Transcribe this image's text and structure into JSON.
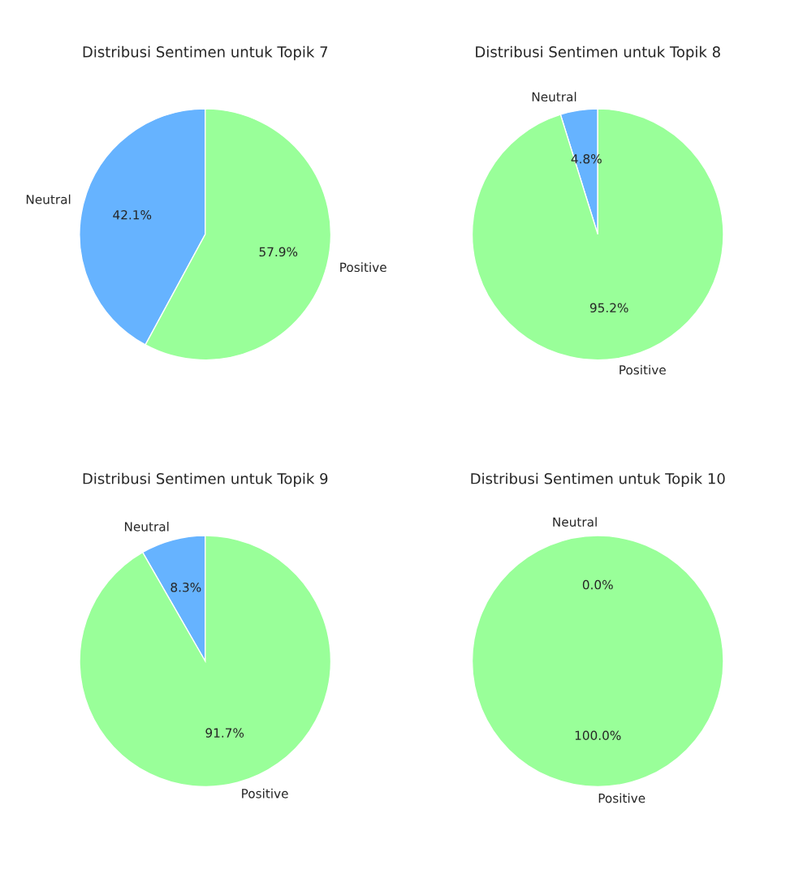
{
  "chart_data": [
    {
      "type": "pie",
      "title": "Distribusi Sentimen untuk Topik 7",
      "categories": [
        "Neutral",
        "Positive"
      ],
      "values": [
        42.1,
        57.9
      ],
      "colors": [
        "#66b3ff",
        "#99ff99"
      ],
      "value_labels": [
        "42.1%",
        "57.9%"
      ]
    },
    {
      "type": "pie",
      "title": "Distribusi Sentimen untuk Topik 8",
      "categories": [
        "Neutral",
        "Positive"
      ],
      "values": [
        4.8,
        95.2
      ],
      "colors": [
        "#66b3ff",
        "#99ff99"
      ],
      "value_labels": [
        "4.8%",
        "95.2%"
      ]
    },
    {
      "type": "pie",
      "title": "Distribusi Sentimen untuk Topik 9",
      "categories": [
        "Neutral",
        "Positive"
      ],
      "values": [
        8.3,
        91.7
      ],
      "colors": [
        "#66b3ff",
        "#99ff99"
      ],
      "value_labels": [
        "8.3%",
        "91.7%"
      ]
    },
    {
      "type": "pie",
      "title": "Distribusi Sentimen untuk Topik 10",
      "categories": [
        "Neutral",
        "Positive"
      ],
      "values": [
        0.0,
        100.0
      ],
      "colors": [
        "#66b3ff",
        "#99ff99"
      ],
      "value_labels": [
        "0.0%",
        "100.0%"
      ]
    }
  ]
}
